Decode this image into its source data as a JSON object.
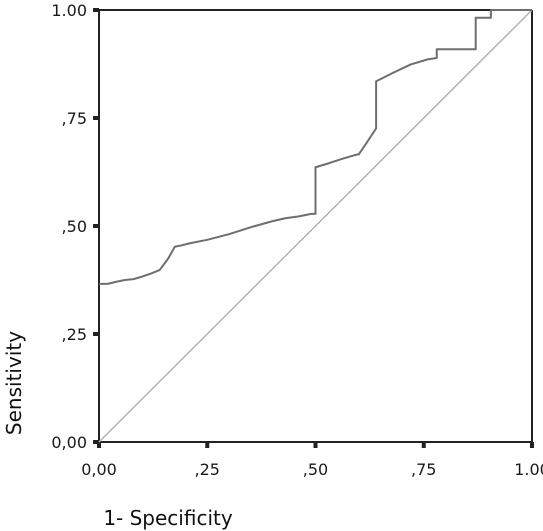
{
  "chart_data": {
    "type": "line",
    "title": "",
    "xlabel": "1- Specificity",
    "ylabel": "Sensitivity",
    "xlim": [
      0,
      1
    ],
    "ylim": [
      0,
      1
    ],
    "grid": false,
    "legend": "none",
    "x_ticks": [
      {
        "value": 0,
        "label": "0,00"
      },
      {
        "value": 0.25,
        "label": ",25"
      },
      {
        "value": 0.5,
        "label": ",50"
      },
      {
        "value": 0.75,
        "label": ",75"
      },
      {
        "value": 1,
        "label": "1.00"
      }
    ],
    "y_ticks": [
      {
        "value": 0,
        "label": "0,00"
      },
      {
        "value": 0.25,
        "label": ",25"
      },
      {
        "value": 0.5,
        "label": ",50"
      },
      {
        "value": 0.75,
        "label": ",75"
      },
      {
        "value": 1,
        "label": "1.00"
      }
    ],
    "series": [
      {
        "role": "roc-curve",
        "color": "#6e6e6e",
        "points": [
          [
            0,
            0.366
          ],
          [
            0.02,
            0.366
          ],
          [
            0.04,
            0.371
          ],
          [
            0.06,
            0.375
          ],
          [
            0.08,
            0.377
          ],
          [
            0.1,
            0.383
          ],
          [
            0.12,
            0.39
          ],
          [
            0.14,
            0.398
          ],
          [
            0.16,
            0.425
          ],
          [
            0.175,
            0.452
          ],
          [
            0.19,
            0.455
          ],
          [
            0.21,
            0.46
          ],
          [
            0.25,
            0.468
          ],
          [
            0.3,
            0.481
          ],
          [
            0.35,
            0.497
          ],
          [
            0.4,
            0.511
          ],
          [
            0.43,
            0.518
          ],
          [
            0.46,
            0.522
          ],
          [
            0.49,
            0.528
          ],
          [
            0.5,
            0.528
          ],
          [
            0.5,
            0.636
          ],
          [
            0.53,
            0.645
          ],
          [
            0.56,
            0.655
          ],
          [
            0.59,
            0.664
          ],
          [
            0.6,
            0.666
          ],
          [
            0.615,
            0.688
          ],
          [
            0.64,
            0.726
          ],
          [
            0.64,
            0.835
          ],
          [
            0.68,
            0.855
          ],
          [
            0.72,
            0.874
          ],
          [
            0.76,
            0.886
          ],
          [
            0.78,
            0.889
          ],
          [
            0.78,
            0.909
          ],
          [
            0.87,
            0.909
          ],
          [
            0.87,
            0.982
          ],
          [
            0.905,
            0.982
          ],
          [
            0.905,
            1.0
          ],
          [
            1.0,
            1.0
          ]
        ]
      },
      {
        "role": "reference-line",
        "color": "#b3b3b3",
        "points": [
          [
            0,
            0
          ],
          [
            1,
            1
          ]
        ]
      }
    ]
  }
}
